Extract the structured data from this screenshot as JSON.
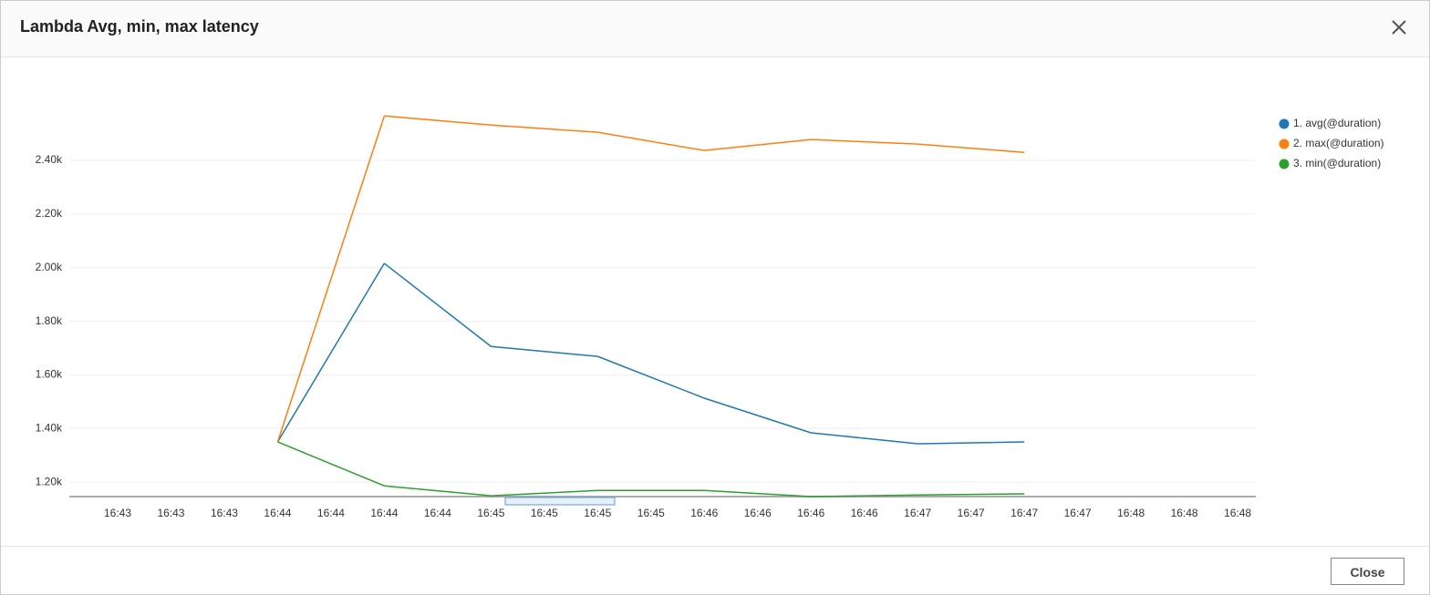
{
  "chart_data": {
    "type": "line",
    "title": "Lambda Avg, min, max latency",
    "categories": [
      "16:43",
      "16:43",
      "16:43",
      "16:44",
      "16:44",
      "16:44",
      "16:44",
      "16:45",
      "16:45",
      "16:45",
      "16:45",
      "16:46",
      "16:46",
      "16:46",
      "16:46",
      "16:47",
      "16:47",
      "16:47",
      "16:47",
      "16:48",
      "16:48",
      "16:48"
    ],
    "series": [
      {
        "name": "1. avg(@duration)",
        "color": "#1f77b4",
        "values": [
          null,
          null,
          null,
          1350,
          null,
          2016,
          null,
          1706,
          null,
          1669,
          null,
          1513,
          null,
          1384,
          null,
          1343,
          null,
          1350,
          null,
          null,
          null,
          null
        ]
      },
      {
        "name": "2. max(@duration)",
        "color": "#ff7f0e",
        "values": [
          null,
          null,
          null,
          1350,
          null,
          2566,
          null,
          2532,
          null,
          2505,
          null,
          2437,
          null,
          2478,
          null,
          2461,
          null,
          2430,
          null,
          null,
          null,
          null
        ]
      },
      {
        "name": "3. min(@duration)",
        "color": "#2ca02c",
        "values": [
          null,
          null,
          null,
          1350,
          null,
          1186,
          null,
          1149,
          null,
          1169,
          null,
          1169,
          null,
          1146,
          null,
          1152,
          null,
          1156,
          null,
          null,
          null,
          null
        ]
      }
    ],
    "ylim": [
      1146,
      2650
    ],
    "yticks": [
      {
        "value": 1200,
        "label": "1.20k"
      },
      {
        "value": 1400,
        "label": "1.40k"
      },
      {
        "value": 1600,
        "label": "1.60k"
      },
      {
        "value": 1800,
        "label": "1.80k"
      },
      {
        "value": 2000,
        "label": "2.00k"
      },
      {
        "value": 2200,
        "label": "2.20k"
      },
      {
        "value": 2400,
        "label": "2.40k"
      }
    ],
    "grid": true,
    "legend": "right"
  },
  "close_button": "Close"
}
